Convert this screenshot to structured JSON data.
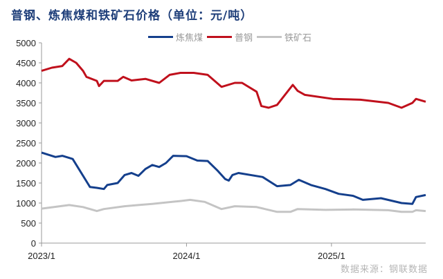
{
  "chart_data": {
    "type": "line",
    "title": "普钢、炼焦煤和铁矿石价格（单位：元/吨）",
    "xlabel": "",
    "ylabel": "",
    "x_unit": "months since 2023/1",
    "xlim": [
      0,
      31.8
    ],
    "ylim": [
      0,
      5000
    ],
    "yticks": [
      0,
      500,
      1000,
      1500,
      2000,
      2500,
      3000,
      3500,
      4000,
      4500,
      5000
    ],
    "xticks": [
      {
        "value": 0,
        "label": "2023/1"
      },
      {
        "value": 12,
        "label": "2024/1"
      },
      {
        "value": 24,
        "label": "2025/1"
      }
    ],
    "grid": false,
    "legend_position": "top",
    "series": [
      {
        "name": "炼焦煤",
        "color": "#143f8c",
        "x": [
          0,
          1.15,
          1.72,
          2.58,
          4.01,
          4.58,
          5.16,
          5.44,
          6.3,
          6.88,
          7.45,
          8.02,
          8.6,
          9.17,
          9.74,
          10.3,
          10.9,
          12.0,
          12.9,
          13.75,
          14.6,
          15.2,
          15.5,
          15.8,
          16.3,
          18.3,
          19.5,
          20.6,
          21.3,
          22.3,
          23.5,
          24.6,
          25.8,
          26.6,
          28.1,
          29.8,
          30.7,
          31.0,
          31.8
        ],
        "y": [
          2260,
          2150,
          2180,
          2100,
          1400,
          1380,
          1350,
          1450,
          1500,
          1700,
          1750,
          1680,
          1850,
          1950,
          1900,
          2000,
          2180,
          2170,
          2060,
          2050,
          1800,
          1600,
          1560,
          1700,
          1750,
          1650,
          1420,
          1450,
          1580,
          1450,
          1350,
          1230,
          1180,
          1080,
          1120,
          1000,
          980,
          1150,
          1200
        ]
      },
      {
        "name": "普钢",
        "color": "#c0101c",
        "x": [
          0,
          0.86,
          1.72,
          2.29,
          2.87,
          3.44,
          3.72,
          4.58,
          4.76,
          5.16,
          6.3,
          6.76,
          7.45,
          8.6,
          9.74,
          10.6,
          11.5,
          12.6,
          13.75,
          14.9,
          16.0,
          16.6,
          17.8,
          18.2,
          18.8,
          19.5,
          20.8,
          21.2,
          21.8,
          24.1,
          26.4,
          28.7,
          29.8,
          30.7,
          31.0,
          31.8
        ],
        "y": [
          4300,
          4380,
          4420,
          4600,
          4500,
          4300,
          4150,
          4050,
          3920,
          4050,
          4050,
          4150,
          4060,
          4100,
          4000,
          4200,
          4250,
          4250,
          4200,
          3900,
          4000,
          4000,
          3780,
          3420,
          3380,
          3450,
          3950,
          3800,
          3700,
          3600,
          3580,
          3500,
          3380,
          3500,
          3600,
          3530
        ]
      },
      {
        "name": "铁矿石",
        "color": "#c4c4c4",
        "x": [
          0,
          2.29,
          3.44,
          4.58,
          5.16,
          6.88,
          8.02,
          9.17,
          11.5,
          12.3,
          13.5,
          14.9,
          16.0,
          17.8,
          19.5,
          20.6,
          21.2,
          23.5,
          25.8,
          28.7,
          29.8,
          30.7,
          31.0,
          31.8
        ],
        "y": [
          860,
          950,
          900,
          800,
          850,
          920,
          950,
          980,
          1050,
          1080,
          1030,
          850,
          920,
          900,
          780,
          780,
          850,
          830,
          840,
          820,
          780,
          780,
          820,
          800
        ]
      }
    ]
  },
  "source": "数据来源：钢联数据"
}
